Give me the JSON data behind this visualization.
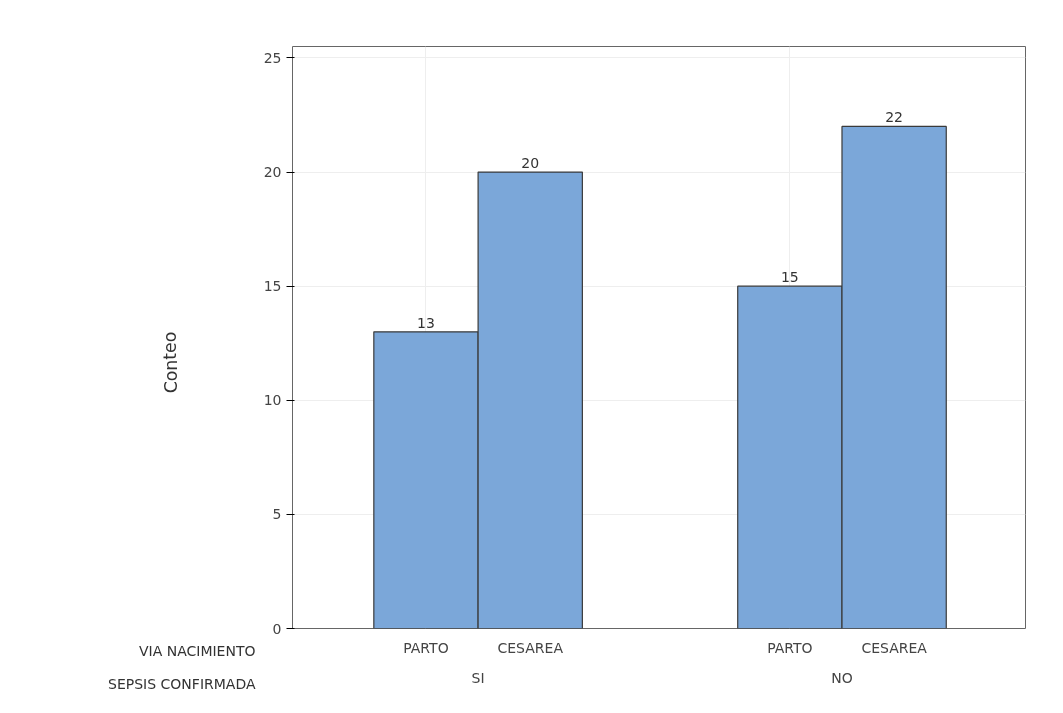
{
  "chart_data": {
    "type": "bar",
    "ylabel": "Conteo",
    "categories": [
      "PARTO",
      "CESAREA",
      "PARTO",
      "CESAREA"
    ],
    "values": [
      13,
      20,
      15,
      22
    ],
    "color": "#7ba7d9",
    "ylim": [
      0,
      25.5
    ],
    "yticks": [
      0,
      5,
      10,
      15,
      20,
      25
    ],
    "grid": true,
    "data_labels": true,
    "annotations": [
      "VIA NACIMIENTO",
      "SEPSIS CONFIRMADA",
      "SI",
      "NO"
    ]
  }
}
